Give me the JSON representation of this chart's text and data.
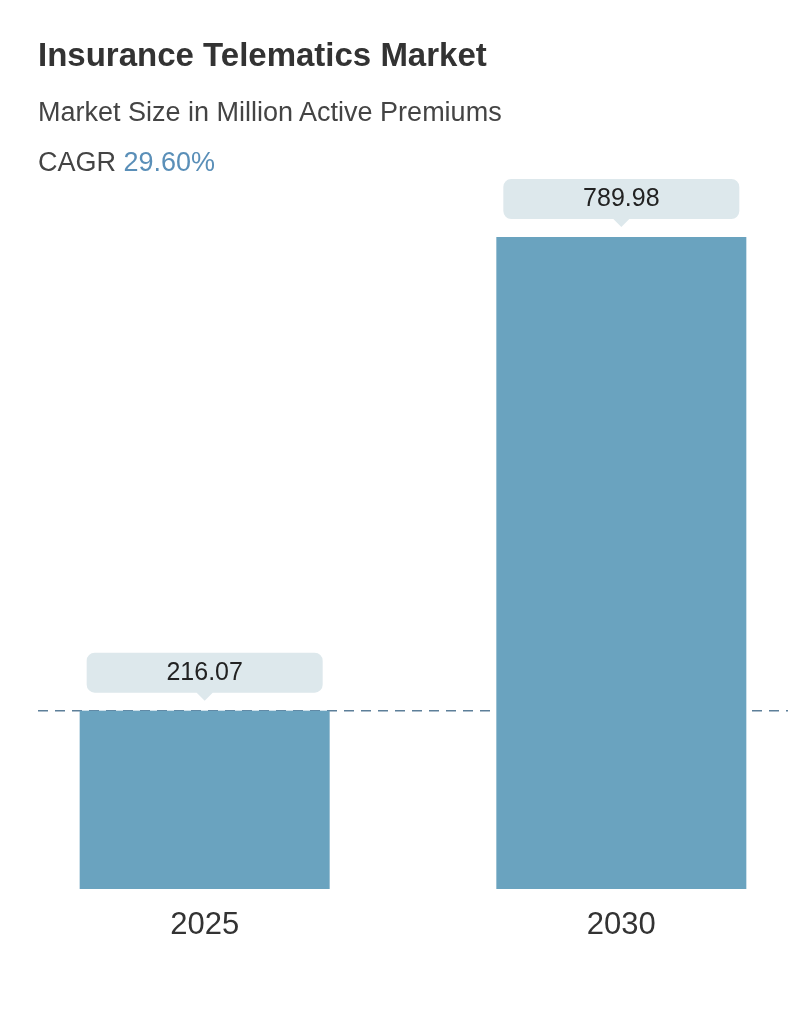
{
  "chart_data": {
    "type": "bar",
    "title": "Insurance Telematics Market",
    "subtitle": "Market Size in Million Active Premiums",
    "annotations": [
      "CAGR 29.60%"
    ],
    "categories": [
      "2025",
      "2030"
    ],
    "values": [
      216.07,
      789.98
    ],
    "color": "#6aa3bf",
    "data_labels": true,
    "ref_lines": [
      {
        "axis": "y",
        "value": 216.07,
        "color": "#5d7f99",
        "line_style": "dashed"
      }
    ],
    "grid": false
  }
}
